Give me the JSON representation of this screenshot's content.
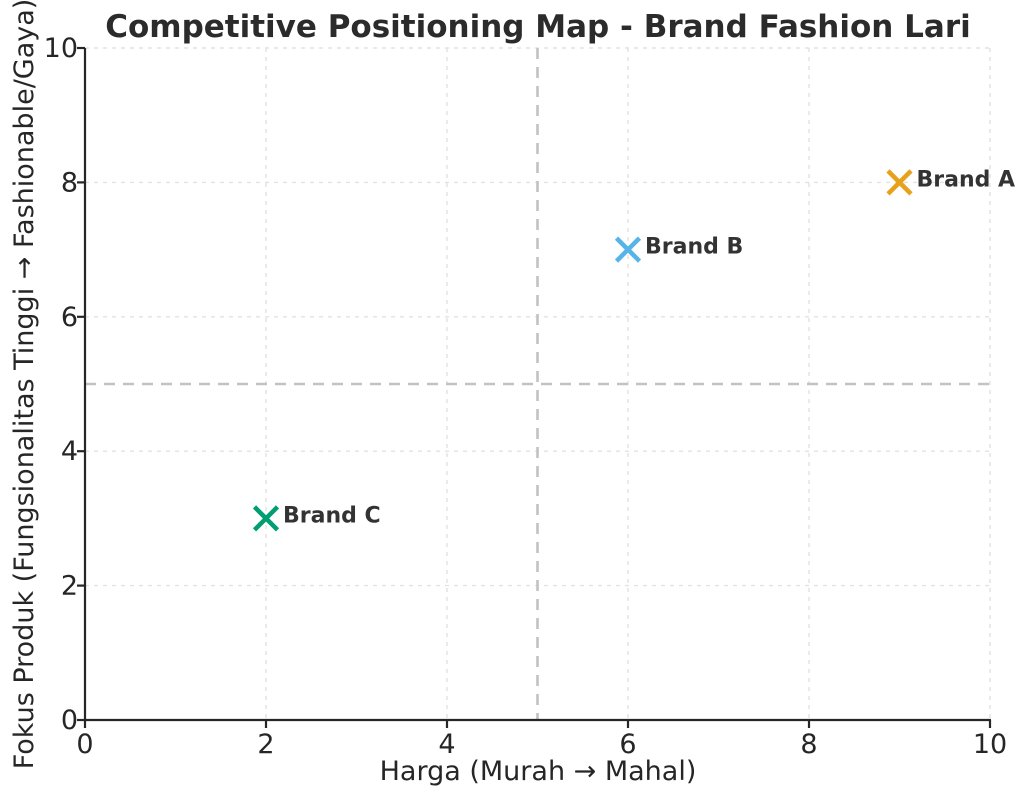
{
  "figure": {
    "background_color": "#ffffff"
  },
  "chart_data": {
    "type": "scatter",
    "title": "Competitive Positioning Map - Brand Fashion Lari",
    "xlabel": "Harga (Murah → Mahal)",
    "ylabel": "Fokus Produk (Fungsionalitas Tinggi → Fashionable/Gaya)",
    "xlim": [
      0,
      10
    ],
    "ylim": [
      0,
      10
    ],
    "xticks": [
      0,
      2,
      4,
      6,
      8,
      10
    ],
    "yticks": [
      0,
      2,
      4,
      6,
      8,
      10
    ],
    "grid": true,
    "legend": "none",
    "quadrant_lines": {
      "x": 5,
      "y": 5,
      "color": "#c2c2c2",
      "style": "dashed"
    },
    "series": [
      {
        "name": "Brand A",
        "x": 9,
        "y": 8,
        "color": "#E8A11A",
        "marker": "x"
      },
      {
        "name": "Brand B",
        "x": 6,
        "y": 7,
        "color": "#56B4E9",
        "marker": "x"
      },
      {
        "name": "Brand C",
        "x": 2,
        "y": 3,
        "color": "#029E73",
        "marker": "x"
      }
    ],
    "style": {
      "text_color": "#262626",
      "spine_color": "#262626",
      "grid_color": "#e4e2df",
      "label_color": "#333333"
    }
  }
}
